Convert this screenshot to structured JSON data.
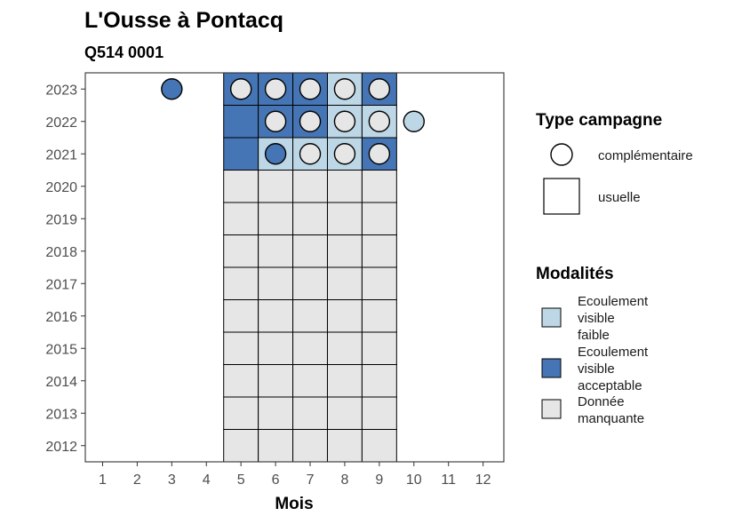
{
  "chart_data": {
    "type": "heatmap",
    "title": "L'Ousse à Pontacq",
    "subtitle": "Q514 0001",
    "xlabel": "Mois",
    "ylabel": "",
    "x_ticks": [
      1,
      2,
      3,
      4,
      5,
      6,
      7,
      8,
      9,
      10,
      11,
      12
    ],
    "y_ticks": [
      2012,
      2013,
      2014,
      2015,
      2016,
      2017,
      2018,
      2019,
      2020,
      2021,
      2022,
      2023
    ],
    "xlim": [
      0.5,
      12.6
    ],
    "ylim": [
      2011.5,
      2023.5
    ],
    "modalites": [
      {
        "name": "Ecoulement visible faible",
        "color": "#bdd7e7"
      },
      {
        "name": "Ecoulement visible acceptable",
        "color": "#4575b4"
      },
      {
        "name": "Donnée manquante",
        "color": "#e6e6e6"
      }
    ],
    "campaign_types": [
      "complémentaire",
      "usuelle"
    ],
    "usuelle": [
      {
        "year": 2023,
        "months": [
          5,
          6,
          7,
          8,
          9
        ],
        "values": [
          "Ecoulement visible acceptable",
          "Ecoulement visible acceptable",
          "Ecoulement visible acceptable",
          "Ecoulement visible faible",
          "Ecoulement visible acceptable"
        ]
      },
      {
        "year": 2022,
        "months": [
          5,
          6,
          7,
          8,
          9
        ],
        "values": [
          "Ecoulement visible acceptable",
          "Ecoulement visible acceptable",
          "Ecoulement visible acceptable",
          "Ecoulement visible faible",
          "Ecoulement visible faible"
        ]
      },
      {
        "year": 2021,
        "months": [
          5,
          6,
          7,
          8,
          9
        ],
        "values": [
          "Ecoulement visible acceptable",
          "Ecoulement visible faible",
          "Ecoulement visible faible",
          "Ecoulement visible faible",
          "Ecoulement visible acceptable"
        ]
      },
      {
        "year": 2020,
        "months": [
          5,
          6,
          7,
          8,
          9
        ],
        "values": [
          "Donnée manquante",
          "Donnée manquante",
          "Donnée manquante",
          "Donnée manquante",
          "Donnée manquante"
        ]
      },
      {
        "year": 2019,
        "months": [
          5,
          6,
          7,
          8,
          9
        ],
        "values": [
          "Donnée manquante",
          "Donnée manquante",
          "Donnée manquante",
          "Donnée manquante",
          "Donnée manquante"
        ]
      },
      {
        "year": 2018,
        "months": [
          5,
          6,
          7,
          8,
          9
        ],
        "values": [
          "Donnée manquante",
          "Donnée manquante",
          "Donnée manquante",
          "Donnée manquante",
          "Donnée manquante"
        ]
      },
      {
        "year": 2017,
        "months": [
          5,
          6,
          7,
          8,
          9
        ],
        "values": [
          "Donnée manquante",
          "Donnée manquante",
          "Donnée manquante",
          "Donnée manquante",
          "Donnée manquante"
        ]
      },
      {
        "year": 2016,
        "months": [
          5,
          6,
          7,
          8,
          9
        ],
        "values": [
          "Donnée manquante",
          "Donnée manquante",
          "Donnée manquante",
          "Donnée manquante",
          "Donnée manquante"
        ]
      },
      {
        "year": 2015,
        "months": [
          5,
          6,
          7,
          8,
          9
        ],
        "values": [
          "Donnée manquante",
          "Donnée manquante",
          "Donnée manquante",
          "Donnée manquante",
          "Donnée manquante"
        ]
      },
      {
        "year": 2014,
        "months": [
          5,
          6,
          7,
          8,
          9
        ],
        "values": [
          "Donnée manquante",
          "Donnée manquante",
          "Donnée manquante",
          "Donnée manquante",
          "Donnée manquante"
        ]
      },
      {
        "year": 2013,
        "months": [
          5,
          6,
          7,
          8,
          9
        ],
        "values": [
          "Donnée manquante",
          "Donnée manquante",
          "Donnée manquante",
          "Donnée manquante",
          "Donnée manquante"
        ]
      },
      {
        "year": 2012,
        "months": [
          5,
          6,
          7,
          8,
          9
        ],
        "values": [
          "Donnée manquante",
          "Donnée manquante",
          "Donnée manquante",
          "Donnée manquante",
          "Donnée manquante"
        ]
      }
    ],
    "complementaire": [
      {
        "year": 2023,
        "month": 3,
        "value": "Ecoulement visible acceptable"
      },
      {
        "year": 2023,
        "month": 5,
        "value": "Donnée manquante"
      },
      {
        "year": 2023,
        "month": 6,
        "value": "Donnée manquante"
      },
      {
        "year": 2023,
        "month": 7,
        "value": "Donnée manquante"
      },
      {
        "year": 2023,
        "month": 8,
        "value": "Donnée manquante"
      },
      {
        "year": 2023,
        "month": 9,
        "value": "Donnée manquante"
      },
      {
        "year": 2022,
        "month": 6,
        "value": "Donnée manquante"
      },
      {
        "year": 2022,
        "month": 7,
        "value": "Donnée manquante"
      },
      {
        "year": 2022,
        "month": 8,
        "value": "Donnée manquante"
      },
      {
        "year": 2022,
        "month": 9,
        "value": "Donnée manquante"
      },
      {
        "year": 2022,
        "month": 10,
        "value": "Ecoulement visible faible"
      },
      {
        "year": 2021,
        "month": 6,
        "value": "Ecoulement visible acceptable"
      },
      {
        "year": 2021,
        "month": 7,
        "value": "Donnée manquante"
      },
      {
        "year": 2021,
        "month": 8,
        "value": "Donnée manquante"
      },
      {
        "year": 2021,
        "month": 9,
        "value": "Donnée manquante"
      }
    ],
    "legend_position": "right",
    "grid": false
  },
  "legend": {
    "type_title": "Type campagne",
    "complementaire_label": "complémentaire",
    "usuelle_label": "usuelle",
    "modalites_title": "Modalités",
    "faible_lines": [
      "Ecoulement",
      "visible",
      "faible"
    ],
    "acceptable_lines": [
      "Ecoulement",
      "visible",
      "acceptable"
    ],
    "manquante_lines": [
      "Donnée",
      "manquante"
    ]
  }
}
